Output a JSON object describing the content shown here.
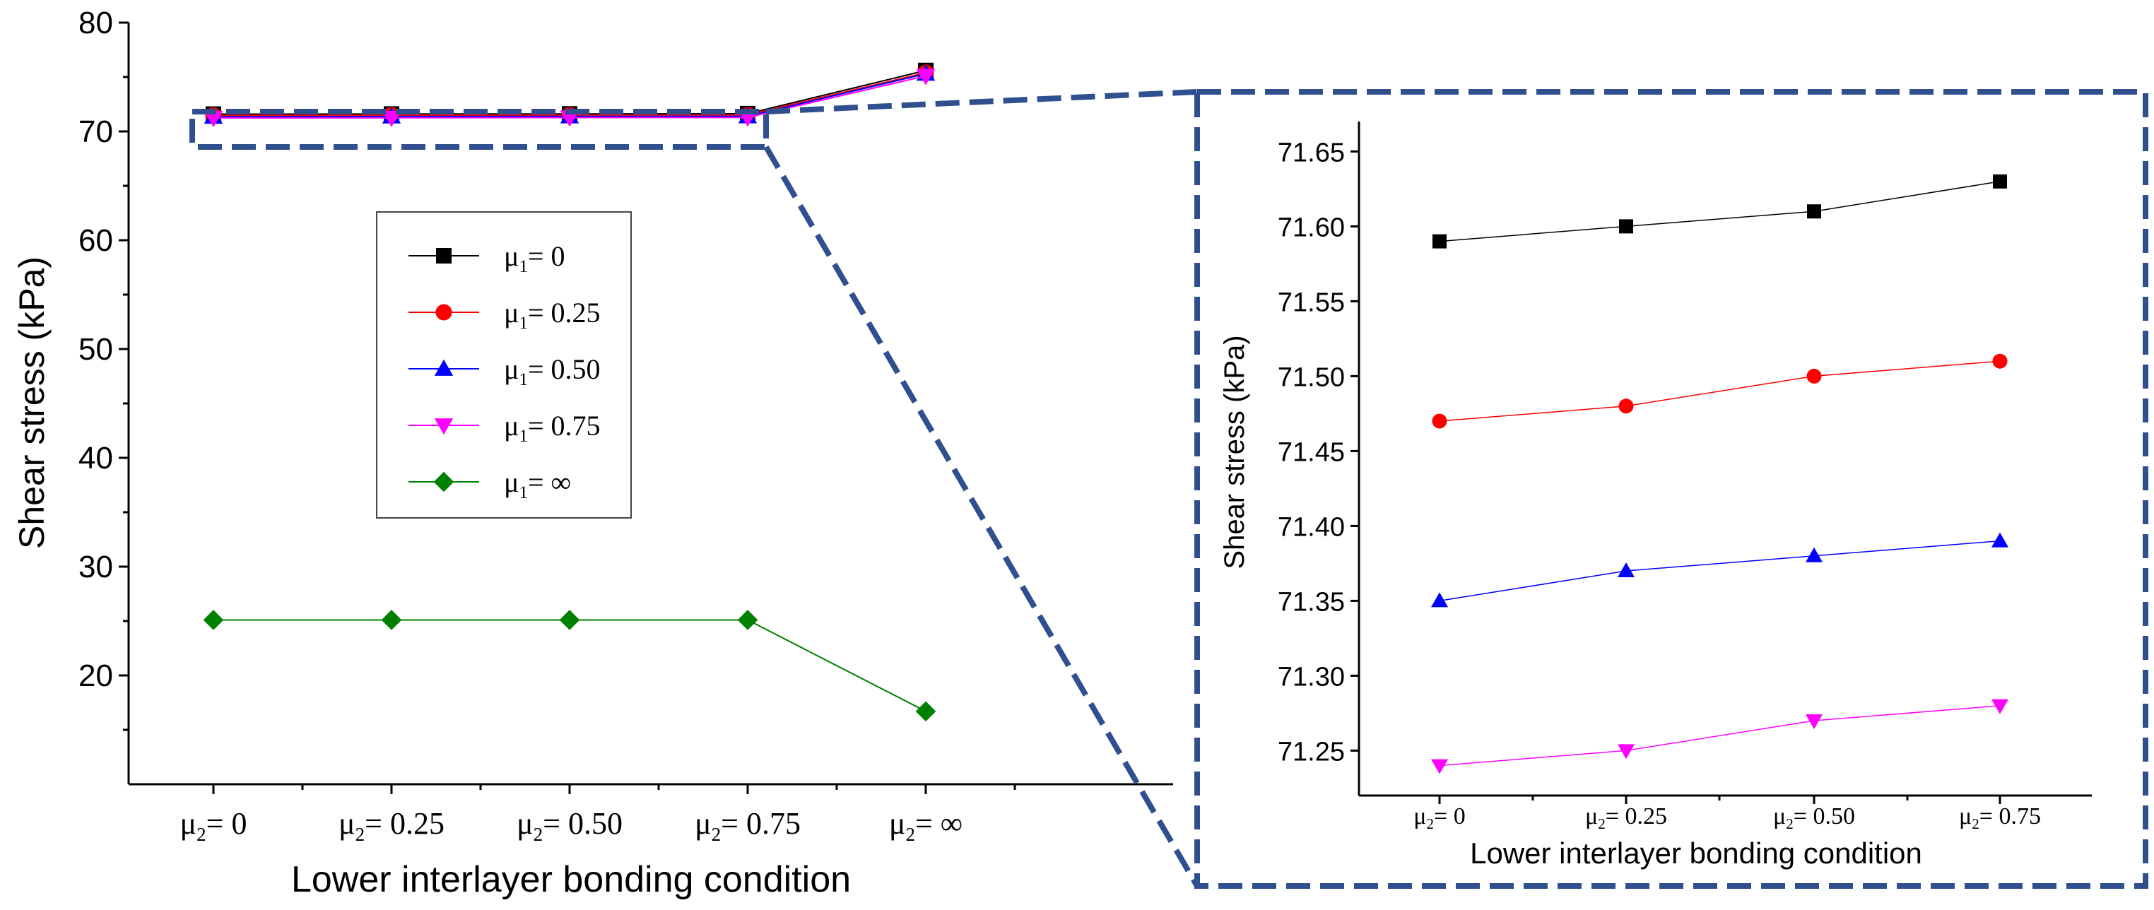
{
  "chart_data": [
    {
      "type": "line",
      "title": "",
      "xlabel": "Lower interlayer bonding condition",
      "ylabel": "Shear stress (kPa)",
      "ylim": [
        10,
        80
      ],
      "yticks": [
        20,
        30,
        40,
        50,
        60,
        70,
        80
      ],
      "categories": [
        {
          "mu": "μ",
          "sub": "2",
          "val": "= 0"
        },
        {
          "mu": "μ",
          "sub": "2",
          "val": "= 0.25"
        },
        {
          "mu": "μ",
          "sub": "2",
          "val": "= 0.50"
        },
        {
          "mu": "μ",
          "sub": "2",
          "val": "= 0.75"
        },
        {
          "mu": "μ",
          "sub": "2",
          "val": "= ∞"
        }
      ],
      "series": [
        {
          "name": "μ1= 0",
          "mu": "μ",
          "sub": "1",
          "val": "= 0",
          "marker": "square",
          "color": "#000000",
          "values": [
            71.59,
            71.6,
            71.61,
            71.63,
            75.6
          ]
        },
        {
          "name": "μ1= 0.25",
          "mu": "μ",
          "sub": "1",
          "val": "= 0.25",
          "marker": "circle",
          "color": "#ff0000",
          "values": [
            71.47,
            71.48,
            71.5,
            71.51,
            75.4
          ]
        },
        {
          "name": "μ1= 0.50",
          "mu": "μ",
          "sub": "1",
          "val": "= 0.50",
          "marker": "triangle-up",
          "color": "#0000ff",
          "values": [
            71.35,
            71.37,
            71.38,
            71.39,
            75.3
          ]
        },
        {
          "name": "μ1= 0.75",
          "mu": "μ",
          "sub": "1",
          "val": "= 0.75",
          "marker": "triangle-down",
          "color": "#ff00ff",
          "values": [
            71.24,
            71.25,
            71.27,
            71.28,
            75.1
          ]
        },
        {
          "name": "μ1= ∞",
          "mu": "μ",
          "sub": "1",
          "val": "= ∞",
          "marker": "diamond",
          "color": "#008000",
          "values": [
            25.1,
            25.1,
            25.1,
            25.1,
            16.7
          ]
        }
      ],
      "legend": "upper-left-center"
    },
    {
      "type": "line",
      "title": "",
      "xlabel": "Lower interlayer bonding condition",
      "ylabel": "Shear stress (kPa)",
      "ylim": [
        71.22,
        71.67
      ],
      "yticks": [
        "71.25",
        "71.30",
        "71.35",
        "71.40",
        "71.45",
        "71.50",
        "71.55",
        "71.60",
        "71.65"
      ],
      "categories": [
        {
          "mu": "μ",
          "sub": "2",
          "val": "= 0"
        },
        {
          "mu": "μ",
          "sub": "2",
          "val": "= 0.25"
        },
        {
          "mu": "μ",
          "sub": "2",
          "val": "= 0.50"
        },
        {
          "mu": "μ",
          "sub": "2",
          "val": "= 0.75"
        }
      ],
      "series": [
        {
          "name": "μ1= 0",
          "marker": "square",
          "color": "#000000",
          "values": [
            71.59,
            71.6,
            71.61,
            71.63
          ]
        },
        {
          "name": "μ1= 0.25",
          "marker": "circle",
          "color": "#ff0000",
          "values": [
            71.47,
            71.48,
            71.5,
            71.51
          ]
        },
        {
          "name": "μ1= 0.50",
          "marker": "triangle-up",
          "color": "#0000ff",
          "values": [
            71.35,
            71.37,
            71.38,
            71.39
          ]
        },
        {
          "name": "μ1= 0.75",
          "marker": "triangle-down",
          "color": "#ff00ff",
          "values": [
            71.24,
            71.25,
            71.27,
            71.28
          ]
        }
      ]
    }
  ],
  "style": {
    "zoom_box_color": "#2f4f8f"
  }
}
